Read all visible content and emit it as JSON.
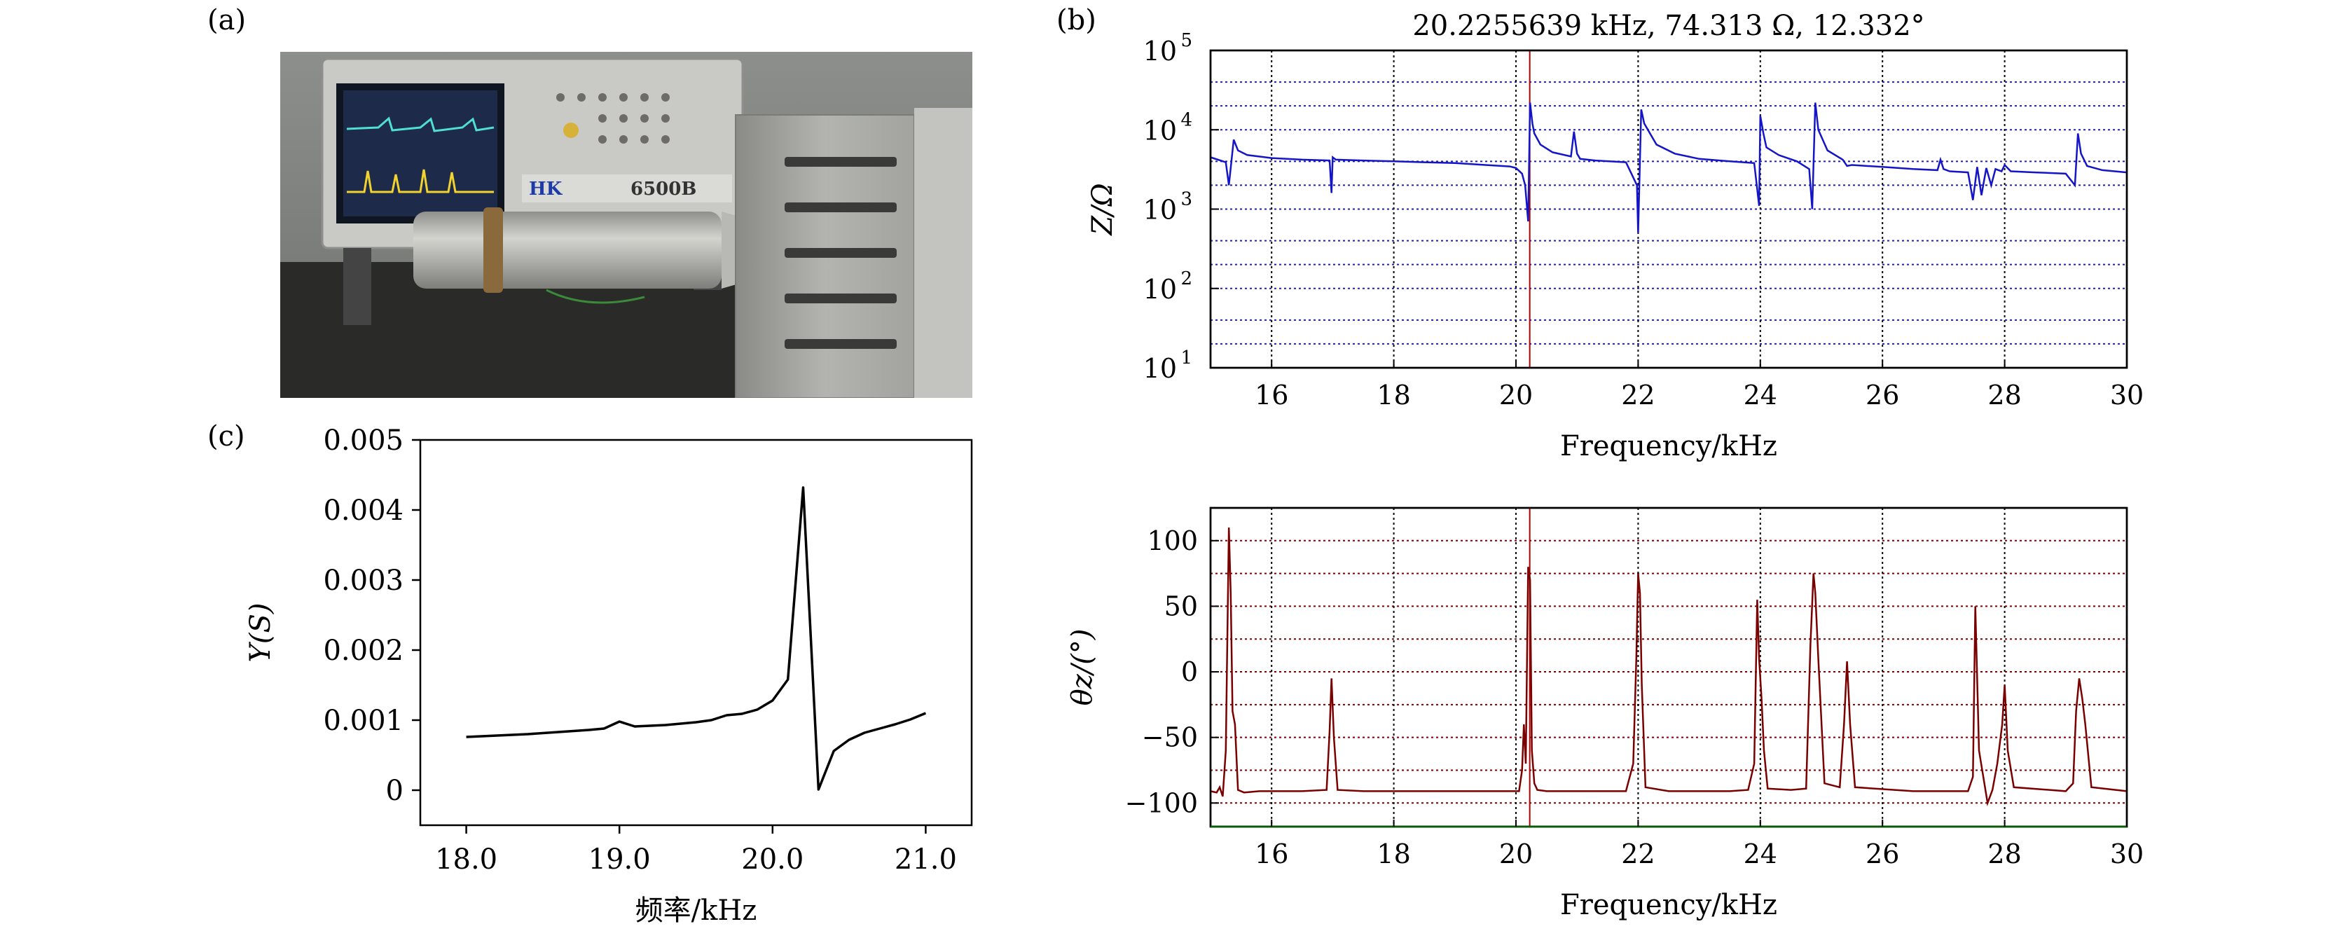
{
  "panels": {
    "a": {
      "label": "(a)"
    },
    "b": {
      "label": "(b)"
    },
    "c": {
      "label": "(c)"
    }
  },
  "photo": {
    "instrument_brand": "HK",
    "instrument_model": "6500B",
    "colors": {
      "case": "#c9c9c6",
      "screen": "#1d2a4a",
      "trace_cyan": "#4fe0d0",
      "trace_yellow": "#f2d22e",
      "transducer": "#a8a8a4",
      "stack": "#9d9e9a"
    }
  },
  "chart_data": [
    {
      "id": "impedance",
      "type": "line",
      "title": "20.2255639 kHz, 74.313 Ω, 12.332°",
      "xlabel": "Frequency/kHz",
      "ylabel": "Z/Ω",
      "xlim": [
        15,
        30
      ],
      "ylim_log10": [
        1,
        5
      ],
      "y_scale": "log",
      "xticks": [
        "16",
        "18",
        "20",
        "22",
        "24",
        "26",
        "28",
        "30"
      ],
      "yticks": [
        "10",
        "10",
        "10",
        "10",
        "10"
      ],
      "ytick_exponents": [
        "1",
        "2",
        "3",
        "4",
        "5"
      ],
      "grid": true,
      "marker_x": 20.2255639,
      "series": [
        {
          "color": "#1515c8",
          "x": [
            15.0,
            15.25,
            15.3,
            15.38,
            15.45,
            15.6,
            16.0,
            16.5,
            16.95,
            16.98,
            17.0,
            17.05,
            17.5,
            18.0,
            18.5,
            19.0,
            19.5,
            19.9,
            20.0,
            20.1,
            20.15,
            20.2,
            20.23,
            20.27,
            20.3,
            20.4,
            20.6,
            20.9,
            20.95,
            21.0,
            21.05,
            21.3,
            21.8,
            21.98,
            22.0,
            22.05,
            22.1,
            22.3,
            22.6,
            23.0,
            23.5,
            23.9,
            23.98,
            24.0,
            24.05,
            24.1,
            24.3,
            24.6,
            24.8,
            24.85,
            24.9,
            24.95,
            25.1,
            25.35,
            25.42,
            25.5,
            26.0,
            26.5,
            26.9,
            26.95,
            27.0,
            27.1,
            27.4,
            27.48,
            27.55,
            27.62,
            27.7,
            27.78,
            27.85,
            27.95,
            28.0,
            28.1,
            28.5,
            29.0,
            29.15,
            29.2,
            29.25,
            29.35,
            29.6,
            30.0
          ],
          "y": [
            4500,
            3900,
            2000,
            7500,
            5500,
            4800,
            4400,
            4200,
            4100,
            1600,
            4500,
            4200,
            4100,
            4000,
            3900,
            3800,
            3600,
            3450,
            3300,
            2800,
            2000,
            700,
            22000,
            12000,
            9000,
            6500,
            5200,
            4600,
            9500,
            5000,
            4300,
            4100,
            3900,
            2000,
            500,
            18000,
            12000,
            6500,
            5000,
            4300,
            4000,
            3800,
            1100,
            15000,
            9000,
            6000,
            4800,
            4000,
            3200,
            1000,
            22000,
            10000,
            5500,
            4200,
            3500,
            3600,
            3400,
            3200,
            3100,
            4200,
            3200,
            3000,
            2900,
            1300,
            3400,
            1500,
            3300,
            2000,
            3200,
            3000,
            3600,
            3000,
            2900,
            2800,
            2000,
            9000,
            5000,
            3500,
            3100,
            2900
          ]
        }
      ]
    },
    {
      "id": "phase",
      "type": "line",
      "title": "",
      "xlabel": "Frequency/kHz",
      "ylabel": "θz/(°)",
      "xlim": [
        15,
        30
      ],
      "ylim": [
        -118,
        125
      ],
      "xticks": [
        "16",
        "18",
        "20",
        "22",
        "24",
        "26",
        "28",
        "30"
      ],
      "yticks": [
        "100",
        "50",
        "0",
        "−50",
        "−100"
      ],
      "ytick_values": [
        100,
        50,
        0,
        -50,
        -100
      ],
      "grid": true,
      "marker_x": 20.2255639,
      "series": [
        {
          "color": "#7a0000",
          "x": [
            15.0,
            15.1,
            15.15,
            15.2,
            15.25,
            15.3,
            15.33,
            15.36,
            15.4,
            15.45,
            15.55,
            15.8,
            16.5,
            16.9,
            16.95,
            16.98,
            17.02,
            17.08,
            17.5,
            18.5,
            19.5,
            20.05,
            20.1,
            20.13,
            20.16,
            20.2,
            20.23,
            20.26,
            20.3,
            20.35,
            20.5,
            20.9,
            21.0,
            21.8,
            21.92,
            21.97,
            22.0,
            22.03,
            22.06,
            22.12,
            22.5,
            23.5,
            23.8,
            23.9,
            23.95,
            23.98,
            24.02,
            24.06,
            24.12,
            24.5,
            24.75,
            24.82,
            24.87,
            24.9,
            24.95,
            25.05,
            25.3,
            25.37,
            25.42,
            25.47,
            25.55,
            26.5,
            27.4,
            27.48,
            27.52,
            27.58,
            27.65,
            27.72,
            27.8,
            27.88,
            27.96,
            28.0,
            28.05,
            28.15,
            29.0,
            29.12,
            29.17,
            29.22,
            29.27,
            29.32,
            29.42,
            30.0
          ],
          "y": [
            -91,
            -92,
            -88,
            -95,
            -60,
            110,
            60,
            -30,
            -40,
            -90,
            -92,
            -91,
            -91,
            -90,
            -45,
            -5,
            -50,
            -90,
            -91,
            -91,
            -91,
            -91,
            -75,
            -40,
            -70,
            80,
            70,
            -60,
            -85,
            -90,
            -91,
            -91,
            -91,
            -91,
            -70,
            10,
            75,
            60,
            -10,
            -88,
            -91,
            -91,
            -90,
            -70,
            55,
            10,
            -20,
            -60,
            -89,
            -90,
            -89,
            20,
            75,
            60,
            10,
            -85,
            -88,
            -40,
            8,
            -40,
            -88,
            -91,
            -91,
            -80,
            50,
            -60,
            -80,
            -100,
            -90,
            -70,
            -40,
            -10,
            -60,
            -88,
            -91,
            -85,
            -30,
            -5,
            -20,
            -40,
            -88,
            -91
          ]
        }
      ]
    },
    {
      "id": "admittance",
      "type": "line",
      "title": "",
      "xlabel": "频率/kHz",
      "ylabel": "Y(S)",
      "xlim": [
        17.7,
        21.3
      ],
      "ylim": [
        -0.0005,
        0.005
      ],
      "xticks": [
        "18.0",
        "19.0",
        "20.0",
        "21.0"
      ],
      "xtick_values": [
        18.0,
        19.0,
        20.0,
        21.0
      ],
      "yticks": [
        "0.005",
        "0.004",
        "0.003",
        "0.002",
        "0.001",
        "0"
      ],
      "ytick_values": [
        0.005,
        0.004,
        0.003,
        0.002,
        0.001,
        0
      ],
      "grid": false,
      "series": [
        {
          "color": "#000000",
          "x": [
            18.0,
            18.2,
            18.4,
            18.6,
            18.8,
            18.9,
            19.0,
            19.1,
            19.3,
            19.5,
            19.6,
            19.7,
            19.8,
            19.9,
            20.0,
            20.1,
            20.2,
            20.3,
            20.4,
            20.5,
            20.6,
            20.7,
            20.8,
            20.9,
            21.0
          ],
          "y": [
            0.00076,
            0.00078,
            0.0008,
            0.00083,
            0.00086,
            0.00088,
            0.00098,
            0.00091,
            0.00093,
            0.00097,
            0.001,
            0.00107,
            0.00109,
            0.00115,
            0.00128,
            0.00158,
            0.00432,
            1e-05,
            0.00056,
            0.00072,
            0.00082,
            0.00088,
            0.00094,
            0.00101,
            0.0011
          ]
        }
      ]
    }
  ]
}
